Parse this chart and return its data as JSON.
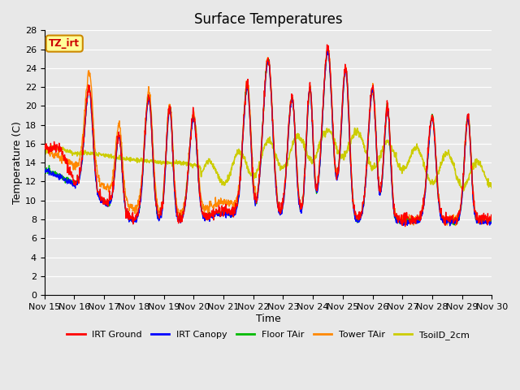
{
  "title": "Surface Temperatures",
  "xlabel": "Time",
  "ylabel": "Temperature (C)",
  "ylim": [
    0,
    28
  ],
  "yticks": [
    0,
    2,
    4,
    6,
    8,
    10,
    12,
    14,
    16,
    18,
    20,
    22,
    24,
    26,
    28
  ],
  "xtick_labels": [
    "Nov 15",
    "Nov 16",
    "Nov 17",
    "Nov 18",
    "Nov 19",
    "Nov 20",
    "Nov 21",
    "Nov 22",
    "Nov 23",
    "Nov 24",
    "Nov 25",
    "Nov 26",
    "Nov 27",
    "Nov 28",
    "Nov 29",
    "Nov 30"
  ],
  "series": {
    "IRT Ground": {
      "color": "#ff0000",
      "linewidth": 1.0
    },
    "IRT Canopy": {
      "color": "#0000ff",
      "linewidth": 1.0
    },
    "Floor TAir": {
      "color": "#00bb00",
      "linewidth": 1.0
    },
    "Tower TAir": {
      "color": "#ff8800",
      "linewidth": 1.0
    },
    "TsoilD_2cm": {
      "color": "#cccc00",
      "linewidth": 1.2
    }
  },
  "annotation_text": "TZ_irt",
  "annotation_color": "#cc0000",
  "annotation_bg": "#ffff99",
  "annotation_border": "#cc8800",
  "background_color": "#e8e8e8",
  "grid_color": "#ffffff",
  "title_fontsize": 12,
  "axis_fontsize": 9,
  "tick_fontsize": 8
}
